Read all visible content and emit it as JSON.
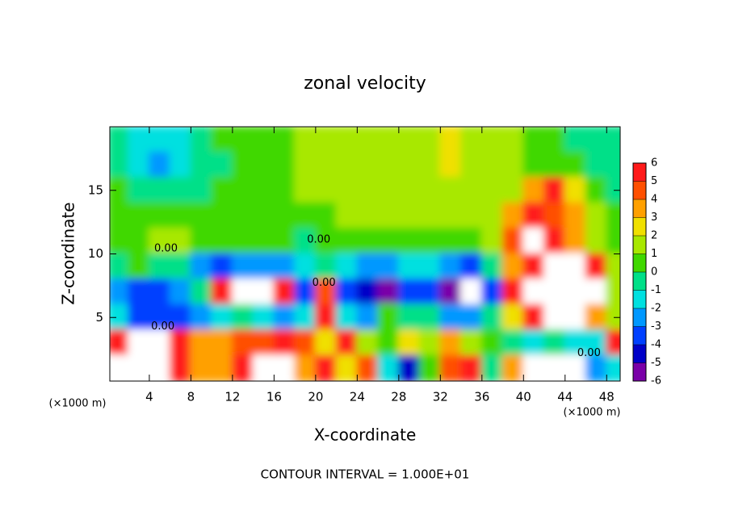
{
  "chart_data": {
    "type": "contour",
    "title": "zonal velocity",
    "x_label": "X-coordinate",
    "y_label": "Z-coordinate",
    "x_unit_labels": [
      "(×1000 m)",
      "(×1000 m)"
    ],
    "footnote": "CONTOUR INTERVAL = 1.000E+01",
    "xlim": [
      0.2,
      49.3
    ],
    "ylim": [
      0,
      20
    ],
    "xticks": [
      4,
      8,
      12,
      16,
      20,
      24,
      28,
      32,
      36,
      40,
      44,
      48
    ],
    "yticks": [
      5,
      10,
      15
    ],
    "x": [
      1,
      3,
      5,
      7,
      9,
      11,
      13,
      15,
      17,
      19,
      21,
      23,
      25,
      27,
      29,
      31,
      33,
      35,
      37,
      39,
      41,
      43,
      45,
      47,
      49
    ],
    "z": [
      19,
      17,
      15,
      13,
      11,
      9,
      7,
      5,
      3,
      1
    ],
    "values": [
      [
        -1,
        -2,
        -2,
        -2,
        -1,
        0,
        0,
        0,
        0,
        1,
        1,
        1,
        1,
        1,
        1,
        1,
        2,
        1,
        1,
        1,
        0,
        0,
        -1,
        -1,
        -1
      ],
      [
        -1,
        -2,
        -3,
        -2,
        -1,
        -1,
        0,
        0,
        0,
        1,
        1,
        1,
        1,
        1,
        1,
        1,
        2,
        1,
        1,
        1,
        0,
        0,
        0,
        -1,
        -1
      ],
      [
        0,
        -1,
        -1,
        -1,
        -1,
        0,
        0,
        0,
        0,
        1,
        1,
        1,
        1,
        1,
        1,
        1,
        1,
        1,
        1,
        1,
        3,
        5,
        2,
        0,
        -1
      ],
      [
        0,
        0,
        0,
        0,
        0,
        0,
        0,
        0,
        0,
        0,
        0,
        1,
        1,
        1,
        1,
        1,
        1,
        1,
        1,
        3,
        5,
        4,
        3,
        1,
        0
      ],
      [
        0,
        0,
        1,
        1,
        0,
        0,
        0,
        0,
        0,
        -1,
        0,
        0,
        0,
        0,
        0,
        0,
        0,
        0,
        1,
        4,
        8,
        5,
        3,
        1,
        0
      ],
      [
        -1,
        0,
        -1,
        -1,
        -3,
        -4,
        -3,
        -3,
        -3,
        -2,
        -1,
        -2,
        -3,
        -3,
        -2,
        -2,
        -3,
        -4,
        -1,
        3,
        6,
        8,
        8,
        5,
        1
      ],
      [
        -3,
        -4,
        -4,
        -3,
        -1,
        5,
        8,
        8,
        6,
        -4,
        4,
        -4,
        -5,
        -6,
        -4,
        -4,
        -6,
        8,
        -4,
        5,
        8,
        8,
        8,
        8,
        1
      ],
      [
        -2,
        -4,
        -4,
        -4,
        -3,
        -2,
        -1,
        -2,
        -3,
        -2,
        5,
        -2,
        -3,
        0,
        -1,
        -1,
        -3,
        -3,
        -1,
        2,
        5,
        8,
        8,
        3,
        1
      ],
      [
        5,
        8,
        8,
        5,
        3,
        3,
        4,
        4,
        5,
        4,
        2,
        5,
        1,
        0,
        2,
        1,
        3,
        1,
        0,
        -1,
        -2,
        -1,
        -2,
        -2,
        5
      ],
      [
        8,
        8,
        8,
        5,
        3,
        3,
        6,
        8,
        8,
        3,
        5,
        2,
        4,
        -2,
        -5,
        0,
        4,
        6,
        -1,
        3,
        8,
        8,
        8,
        -3,
        -2
      ]
    ],
    "colorbar": {
      "ticks": [
        -6,
        -5,
        -4,
        -3,
        -2,
        -1,
        0,
        1,
        2,
        3,
        4,
        5,
        6
      ],
      "colors": [
        "#7a00a8",
        "#0000c8",
        "#0040ff",
        "#0098ff",
        "#00e0e0",
        "#00e088",
        "#40d800",
        "#a8e800",
        "#f0e000",
        "#ffa000",
        "#ff5000",
        "#ff1a1a",
        "#ff9090"
      ]
    },
    "annotations": [
      {
        "text": "0.00",
        "x": 5.6,
        "y": 10.4
      },
      {
        "text": "0.00",
        "x": 20.3,
        "y": 11.1
      },
      {
        "text": "0.00",
        "x": 20.8,
        "y": 7.7
      },
      {
        "text": "0.00",
        "x": 5.3,
        "y": 4.3
      },
      {
        "text": "0.00",
        "x": 46.3,
        "y": 2.2
      }
    ]
  }
}
